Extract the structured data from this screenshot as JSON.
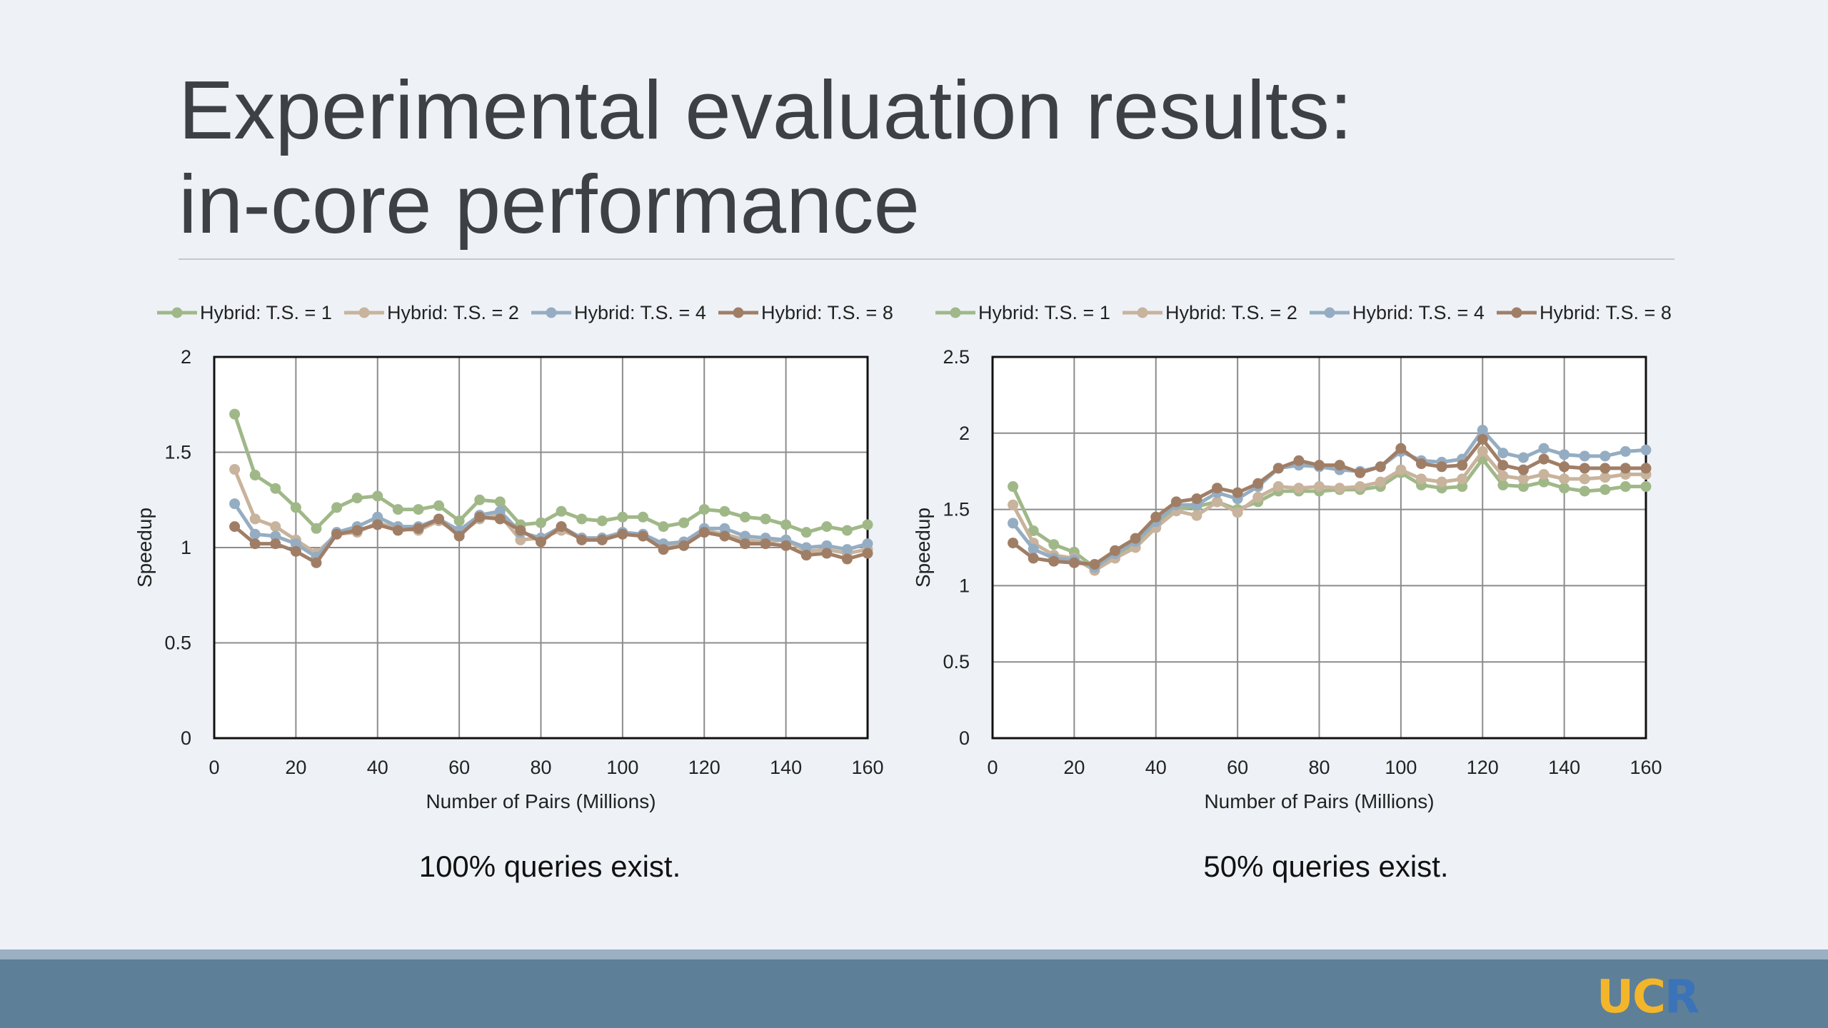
{
  "slide": {
    "title_line1": "Experimental evaluation results:",
    "title_line2": "in-core performance",
    "logo_uc": "UC",
    "logo_r": "R"
  },
  "colors": {
    "ts1": "#a0b888",
    "ts2": "#c8b39c",
    "ts4": "#95adc2",
    "ts8": "#a07e66",
    "grid": "#8c8c8c",
    "axis": "#111111"
  },
  "chart_data": [
    {
      "type": "line",
      "caption": "100% queries exist.",
      "xlabel": "Number of Pairs (Millions)",
      "ylabel": "Speedup",
      "xlim": [
        0,
        160
      ],
      "ylim": [
        0,
        2
      ],
      "xticks": [
        0,
        20,
        40,
        60,
        80,
        100,
        120,
        140,
        160
      ],
      "yticks": [
        0,
        0.5,
        1,
        1.5,
        2
      ],
      "grid": true,
      "legend_position": "top",
      "x": [
        5,
        10,
        15,
        20,
        25,
        30,
        35,
        40,
        45,
        50,
        55,
        60,
        65,
        70,
        75,
        80,
        85,
        90,
        95,
        100,
        105,
        110,
        115,
        120,
        125,
        130,
        135,
        140,
        145,
        150,
        155,
        160
      ],
      "series": [
        {
          "name": "Hybrid: T.S. = 1",
          "color_key": "ts1",
          "values": [
            1.7,
            1.38,
            1.31,
            1.21,
            1.1,
            1.21,
            1.26,
            1.27,
            1.2,
            1.2,
            1.22,
            1.14,
            1.25,
            1.24,
            1.12,
            1.13,
            1.19,
            1.15,
            1.14,
            1.16,
            1.16,
            1.11,
            1.13,
            1.2,
            1.19,
            1.16,
            1.15,
            1.12,
            1.08,
            1.11,
            1.09,
            1.12
          ]
        },
        {
          "name": "Hybrid: T.S. = 2",
          "color_key": "ts2",
          "values": [
            1.41,
            1.15,
            1.11,
            1.04,
            0.97,
            1.07,
            1.08,
            1.13,
            1.1,
            1.09,
            1.14,
            1.07,
            1.15,
            1.17,
            1.04,
            1.05,
            1.09,
            1.05,
            1.05,
            1.08,
            1.06,
            1.01,
            1.02,
            1.09,
            1.07,
            1.04,
            1.03,
            1.04,
            0.98,
            0.99,
            0.97,
            0.99
          ]
        },
        {
          "name": "Hybrid: T.S. = 4",
          "color_key": "ts4",
          "values": [
            1.23,
            1.07,
            1.06,
            1.02,
            0.95,
            1.08,
            1.11,
            1.16,
            1.11,
            1.11,
            1.15,
            1.09,
            1.17,
            1.19,
            1.08,
            1.05,
            1.11,
            1.05,
            1.05,
            1.08,
            1.07,
            1.02,
            1.03,
            1.1,
            1.1,
            1.06,
            1.05,
            1.04,
            1.0,
            1.01,
            0.99,
            1.02
          ]
        },
        {
          "name": "Hybrid: T.S. = 8",
          "color_key": "ts8",
          "values": [
            1.11,
            1.02,
            1.02,
            0.98,
            0.92,
            1.07,
            1.09,
            1.12,
            1.09,
            1.1,
            1.15,
            1.06,
            1.16,
            1.15,
            1.09,
            1.03,
            1.11,
            1.04,
            1.04,
            1.07,
            1.06,
            0.99,
            1.01,
            1.08,
            1.06,
            1.02,
            1.02,
            1.01,
            0.96,
            0.97,
            0.94,
            0.97
          ]
        }
      ]
    },
    {
      "type": "line",
      "caption": "50% queries exist.",
      "xlabel": "Number of Pairs (Millions)",
      "ylabel": "Speedup",
      "xlim": [
        0,
        160
      ],
      "ylim": [
        0,
        2.5
      ],
      "xticks": [
        0,
        20,
        40,
        60,
        80,
        100,
        120,
        140,
        160
      ],
      "yticks": [
        0,
        0.5,
        1,
        1.5,
        2,
        2.5
      ],
      "grid": true,
      "legend_position": "top",
      "x": [
        5,
        10,
        15,
        20,
        25,
        30,
        35,
        40,
        45,
        50,
        55,
        60,
        65,
        70,
        75,
        80,
        85,
        90,
        95,
        100,
        105,
        110,
        115,
        120,
        125,
        130,
        135,
        140,
        145,
        150,
        155,
        160
      ],
      "series": [
        {
          "name": "Hybrid: T.S. = 1",
          "color_key": "ts1",
          "values": [
            1.65,
            1.36,
            1.27,
            1.22,
            1.12,
            1.2,
            1.28,
            1.4,
            1.5,
            1.52,
            1.55,
            1.5,
            1.55,
            1.62,
            1.62,
            1.62,
            1.63,
            1.63,
            1.65,
            1.74,
            1.66,
            1.64,
            1.65,
            1.83,
            1.66,
            1.65,
            1.68,
            1.64,
            1.62,
            1.63,
            1.65,
            1.65
          ]
        },
        {
          "name": "Hybrid: T.S. = 2",
          "color_key": "ts2",
          "values": [
            1.53,
            1.28,
            1.2,
            1.18,
            1.1,
            1.18,
            1.25,
            1.38,
            1.49,
            1.46,
            1.55,
            1.48,
            1.58,
            1.65,
            1.64,
            1.65,
            1.64,
            1.65,
            1.68,
            1.76,
            1.7,
            1.68,
            1.7,
            1.88,
            1.72,
            1.7,
            1.73,
            1.7,
            1.7,
            1.71,
            1.73,
            1.73
          ]
        },
        {
          "name": "Hybrid: T.S. = 4",
          "color_key": "ts4",
          "values": [
            1.41,
            1.24,
            1.18,
            1.17,
            1.12,
            1.21,
            1.29,
            1.42,
            1.53,
            1.53,
            1.61,
            1.57,
            1.65,
            1.77,
            1.79,
            1.78,
            1.76,
            1.75,
            1.78,
            1.88,
            1.82,
            1.81,
            1.83,
            2.02,
            1.87,
            1.84,
            1.9,
            1.86,
            1.85,
            1.85,
            1.88,
            1.89
          ]
        },
        {
          "name": "Hybrid: T.S. = 8",
          "color_key": "ts8",
          "values": [
            1.28,
            1.18,
            1.16,
            1.15,
            1.14,
            1.23,
            1.31,
            1.45,
            1.55,
            1.57,
            1.64,
            1.61,
            1.67,
            1.77,
            1.82,
            1.79,
            1.79,
            1.74,
            1.78,
            1.9,
            1.8,
            1.78,
            1.79,
            1.96,
            1.79,
            1.76,
            1.83,
            1.78,
            1.77,
            1.77,
            1.77,
            1.77
          ]
        }
      ]
    }
  ]
}
